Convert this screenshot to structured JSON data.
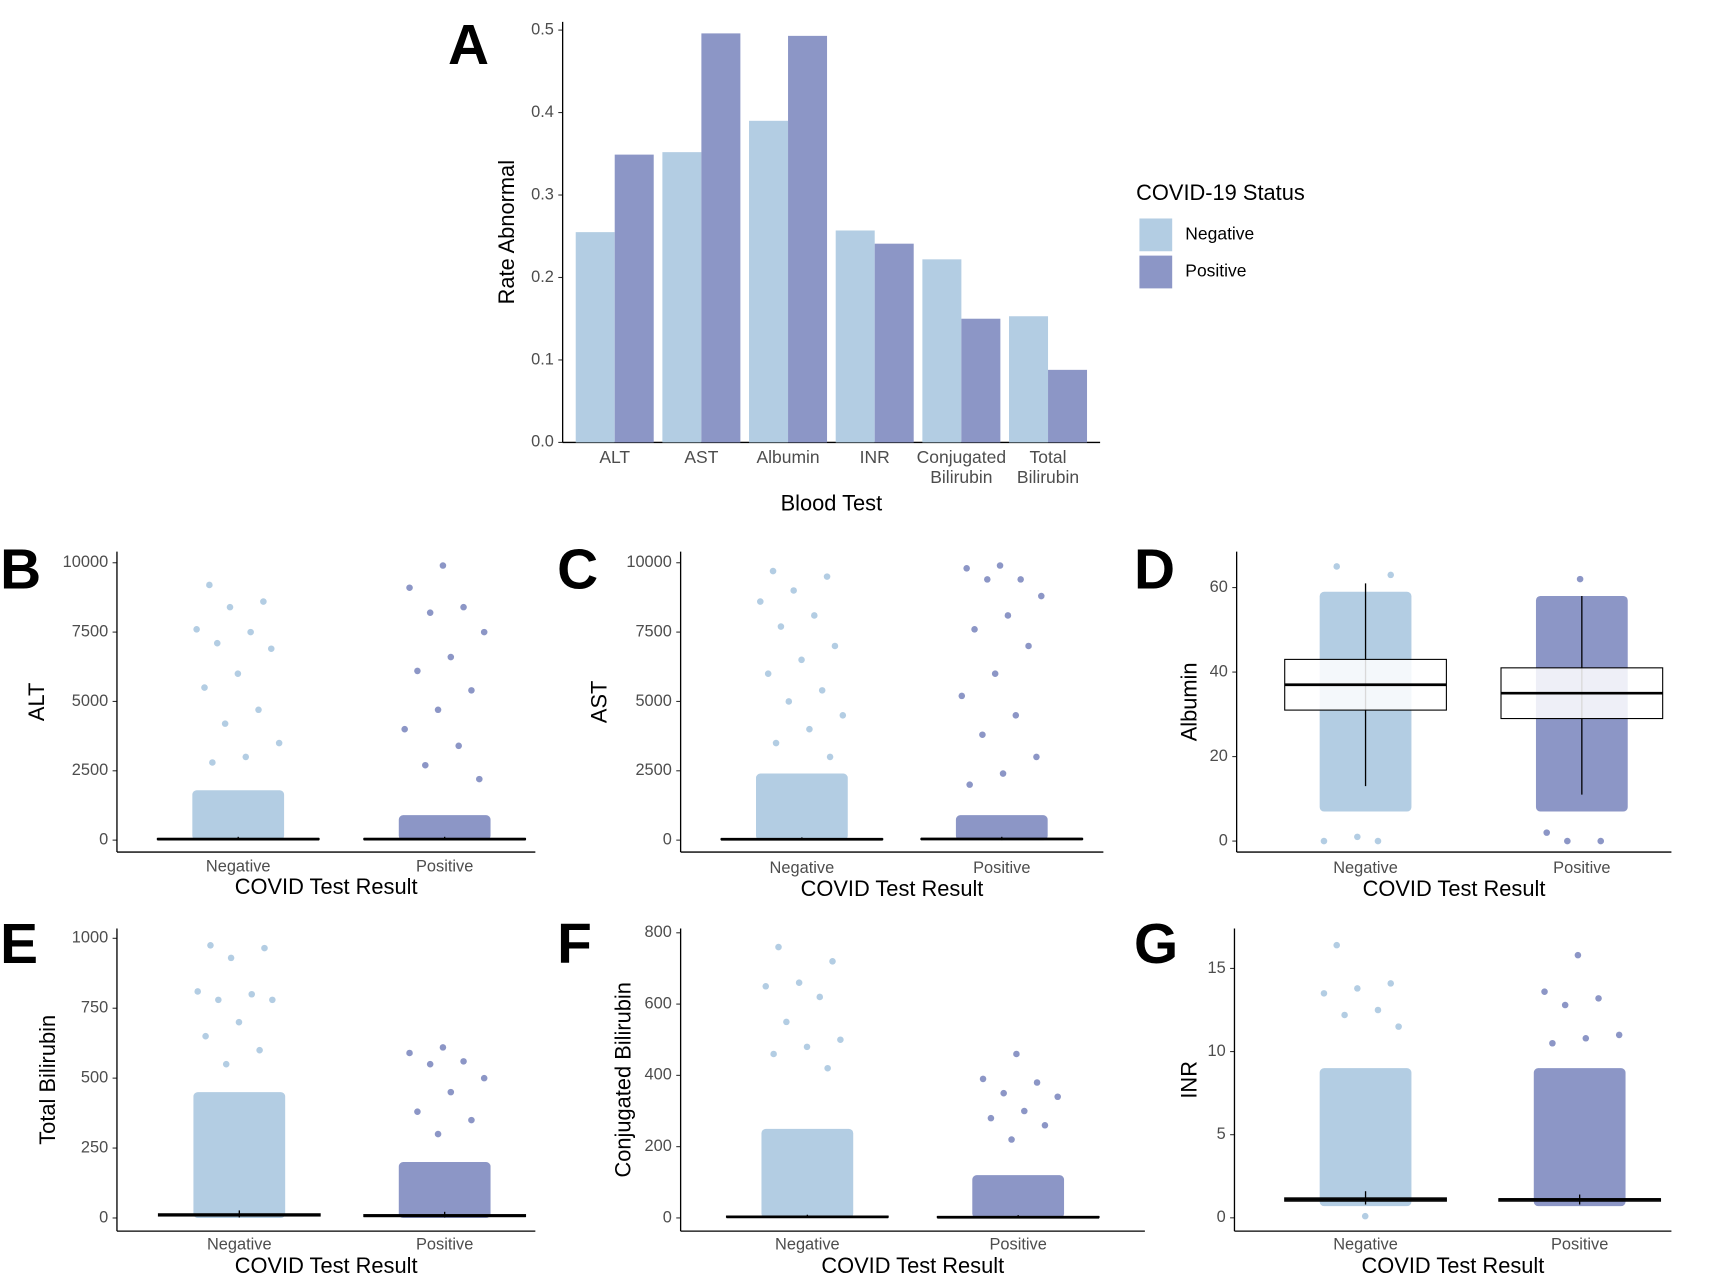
{
  "chart_data": [
    {
      "type": "bar",
      "label": "A",
      "ylabel": "Rate Abnormal",
      "xlabel": "Blood Test",
      "categories": [
        "ALT",
        "AST",
        "Albumin",
        "INR",
        "Conjugated Bilirubin",
        "Total Bilirubin"
      ],
      "legend_title": "COVID-19 Status",
      "series": [
        {
          "name": "Negative",
          "color": "#b3cde3",
          "values": [
            0.255,
            0.352,
            0.39,
            0.257,
            0.222,
            0.153
          ]
        },
        {
          "name": "Positive",
          "color": "#8c96c6",
          "values": [
            0.349,
            0.496,
            0.493,
            0.241,
            0.15,
            0.088
          ]
        }
      ],
      "ylim": [
        0,
        0.51
      ],
      "yticks": [
        {
          "value": 0,
          "label": "0.0"
        },
        0.1,
        0.2,
        0.3,
        0.4,
        0.5
      ]
    },
    {
      "type": "jitter",
      "label": "B",
      "ylabel": "ALT",
      "xlabel": "COVID Test Result",
      "categories": [
        "Negative",
        "Positive"
      ],
      "ylim": [
        -430,
        10400
      ],
      "yticks": [
        0,
        2500,
        5000,
        7500,
        10000
      ],
      "groups": [
        {
          "color": "#b3cde3",
          "dense": [
            0,
            1800
          ],
          "points": [
            9200,
            8600,
            8400,
            7600,
            7500,
            7100,
            6900,
            6000,
            5500,
            4700,
            4200,
            3500,
            3000,
            2800
          ],
          "box": {
            "low": 0,
            "q1": 20,
            "median": 35,
            "q3": 60,
            "high": 120
          }
        },
        {
          "color": "#8c96c6",
          "dense": [
            0,
            900
          ],
          "points": [
            9900,
            9100,
            8400,
            8200,
            7500,
            6600,
            6100,
            5400,
            4700,
            4000,
            3400,
            2700,
            2200
          ],
          "box": {
            "low": 0,
            "q1": 20,
            "median": 35,
            "q3": 60,
            "high": 120
          }
        }
      ]
    },
    {
      "type": "jitter",
      "label": "C",
      "ylabel": "AST",
      "xlabel": "COVID Test Result",
      "categories": [
        "Negative",
        "Positive"
      ],
      "ylim": [
        -430,
        10400
      ],
      "yticks": [
        0,
        2500,
        5000,
        7500,
        10000
      ],
      "groups": [
        {
          "color": "#b3cde3",
          "dense": [
            0,
            2400
          ],
          "points": [
            9700,
            9500,
            9000,
            8600,
            8100,
            7700,
            7000,
            6500,
            6000,
            5400,
            5000,
            4500,
            4000,
            3500,
            3000
          ],
          "box": {
            "low": 0,
            "q1": 20,
            "median": 30,
            "q3": 50,
            "high": 100
          }
        },
        {
          "color": "#8c96c6",
          "dense": [
            0,
            900
          ],
          "points": [
            9900,
            9800,
            9400,
            9400,
            8800,
            8100,
            7600,
            7000,
            6000,
            5200,
            4500,
            3800,
            3000,
            2400,
            2000
          ],
          "box": {
            "low": 0,
            "q1": 25,
            "median": 40,
            "q3": 60,
            "high": 120
          }
        }
      ]
    },
    {
      "type": "jitter",
      "label": "D",
      "ylabel": "Albumin",
      "xlabel": "COVID Test Result",
      "categories": [
        "Negative",
        "Positive"
      ],
      "ylim": [
        -2.6,
        68.5
      ],
      "yticks": [
        0,
        20,
        40,
        60
      ],
      "groups": [
        {
          "color": "#b3cde3",
          "dense": [
            7,
            59
          ],
          "points": [
            65,
            63,
            1,
            0,
            0
          ],
          "box": {
            "low": 13,
            "q1": 31,
            "median": 37,
            "q3": 43,
            "high": 61
          }
        },
        {
          "color": "#8c96c6",
          "dense": [
            7,
            58
          ],
          "points": [
            62,
            2,
            0,
            0
          ],
          "box": {
            "low": 11,
            "q1": 29,
            "median": 35,
            "q3": 41,
            "high": 58
          }
        }
      ]
    },
    {
      "type": "jitter",
      "label": "E",
      "ylabel": "Total Bilirubin",
      "xlabel": "COVID Test Result",
      "categories": [
        "Negative",
        "Positive"
      ],
      "ylim": [
        -47,
        1035
      ],
      "yticks": [
        0,
        250,
        500,
        750,
        1000
      ],
      "groups": [
        {
          "color": "#b3cde3",
          "dense": [
            0,
            450
          ],
          "points": [
            975,
            965,
            930,
            810,
            800,
            780,
            780,
            700,
            650,
            600,
            550
          ],
          "box": {
            "low": 2,
            "q1": 7,
            "median": 10,
            "q3": 15,
            "high": 27
          }
        },
        {
          "color": "#8c96c6",
          "dense": [
            0,
            200
          ],
          "points": [
            610,
            590,
            560,
            550,
            500,
            450,
            380,
            350,
            300
          ],
          "box": {
            "low": 2,
            "q1": 5,
            "median": 8,
            "q3": 12,
            "high": 22
          }
        }
      ]
    },
    {
      "type": "jitter",
      "label": "F",
      "ylabel": "Conjugated Bilirubin",
      "xlabel": "COVID Test Result",
      "categories": [
        "Negative",
        "Positive"
      ],
      "ylim": [
        -37,
        812
      ],
      "yticks": [
        0,
        200,
        400,
        600,
        800
      ],
      "groups": [
        {
          "color": "#b3cde3",
          "dense": [
            0,
            250
          ],
          "points": [
            760,
            720,
            660,
            650,
            620,
            550,
            500,
            480,
            460,
            420
          ],
          "box": {
            "low": 0,
            "q1": 2,
            "median": 3,
            "q3": 5,
            "high": 9
          }
        },
        {
          "color": "#8c96c6",
          "dense": [
            0,
            120
          ],
          "points": [
            460,
            390,
            380,
            350,
            340,
            300,
            280,
            260,
            220
          ],
          "box": {
            "low": 0,
            "q1": 1,
            "median": 2,
            "q3": 4,
            "high": 8
          }
        }
      ]
    },
    {
      "type": "jitter",
      "label": "G",
      "ylabel": "INR",
      "xlabel": "COVID Test Result",
      "categories": [
        "Negative",
        "Positive"
      ],
      "ylim": [
        -0.8,
        17.4
      ],
      "yticks": [
        0,
        5,
        10,
        15
      ],
      "groups": [
        {
          "color": "#b3cde3",
          "dense": [
            0.7,
            9
          ],
          "points": [
            16.4,
            14.1,
            13.8,
            13.5,
            12.5,
            12.2,
            11.5,
            0.1
          ],
          "box": {
            "low": 0.8,
            "q1": 1.0,
            "median": 1.1,
            "q3": 1.2,
            "high": 1.6
          }
        },
        {
          "color": "#8c96c6",
          "dense": [
            0.7,
            9
          ],
          "points": [
            15.8,
            13.6,
            13.2,
            12.8,
            11,
            10.8,
            10.5
          ],
          "box": {
            "low": 0.8,
            "q1": 1.0,
            "median": 1.1,
            "q3": 1.15,
            "high": 1.4
          }
        }
      ]
    }
  ]
}
